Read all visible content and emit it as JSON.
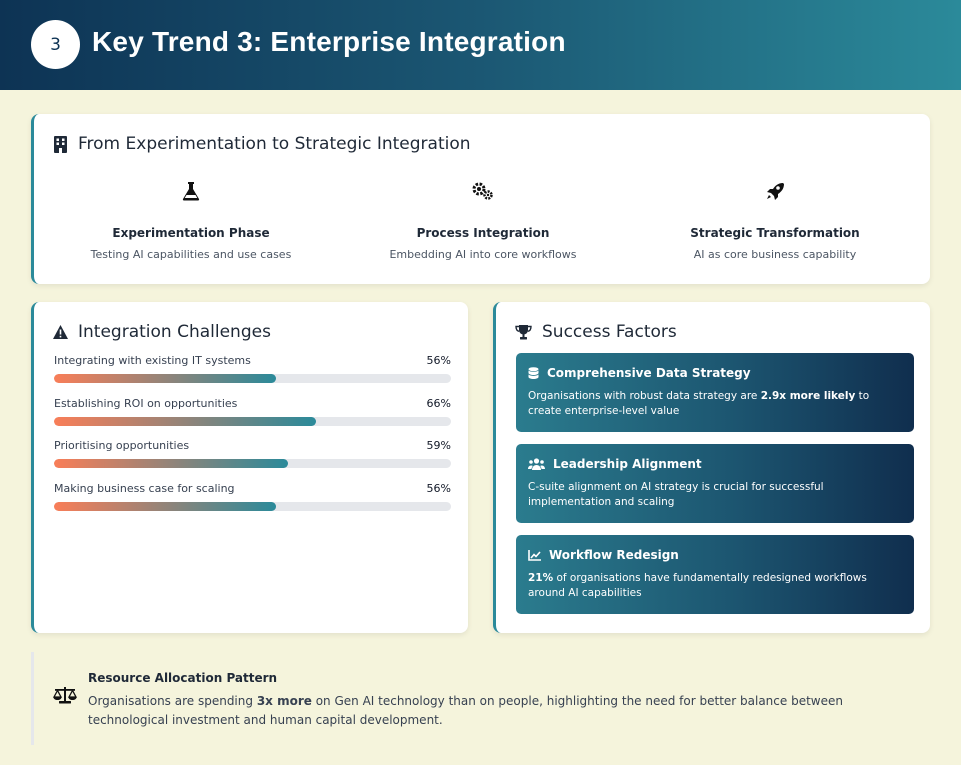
{
  "header": {
    "number": "3",
    "title": "Key Trend 3: Enterprise Integration"
  },
  "integration": {
    "title": "From Experimentation to Strategic Integration",
    "icon": "building-icon",
    "phases": [
      {
        "icon": "flask-icon",
        "name": "Experimentation Phase",
        "desc": "Testing AI capabilities and use cases"
      },
      {
        "icon": "gears-icon",
        "name": "Process Integration",
        "desc": "Embedding AI into core workflows"
      },
      {
        "icon": "rocket-icon",
        "name": "Strategic Transformation",
        "desc": "AI as core business capability"
      }
    ]
  },
  "challenges": {
    "title": "Integration Challenges",
    "icon": "warning-icon",
    "items": [
      {
        "label": "Integrating with existing IT systems",
        "pct_label": "56%",
        "value": 56
      },
      {
        "label": "Establishing ROI on opportunities",
        "pct_label": "66%",
        "value": 66
      },
      {
        "label": "Prioritising opportunities",
        "pct_label": "59%",
        "value": 59
      },
      {
        "label": "Making business case for scaling",
        "pct_label": "56%",
        "value": 56
      }
    ]
  },
  "success": {
    "title": "Success Factors",
    "icon": "trophy-icon",
    "items": [
      {
        "icon": "database-icon",
        "title": "Comprehensive Data Strategy",
        "text_before": "Organisations with robust data strategy are ",
        "text_bold": "2.9x more likely",
        "text_after": " to create enterprise-level value"
      },
      {
        "icon": "users-icon",
        "title": "Leadership Alignment",
        "text_before": "C-suite alignment on AI strategy is crucial for successful implementation and scaling",
        "text_bold": "",
        "text_after": ""
      },
      {
        "icon": "chart-line-icon",
        "title": "Workflow Redesign",
        "text_before": "",
        "text_bold": "21%",
        "text_after": " of organisations have fundamentally redesigned workflows around AI capabilities"
      }
    ]
  },
  "resource": {
    "icon": "balance-scale-icon",
    "title": "Resource Allocation Pattern",
    "text_before": "Organisations are spending ",
    "text_bold": "3x more",
    "text_after": " on Gen AI technology than on people, highlighting the need for better balance between technological investment and human capital development."
  },
  "colors": {
    "header_start": "#0d3354",
    "header_end": "#2b8a9a",
    "accent": "#2b8a9a",
    "bar_start": "#f97e58",
    "background": "#f5f4dc"
  }
}
